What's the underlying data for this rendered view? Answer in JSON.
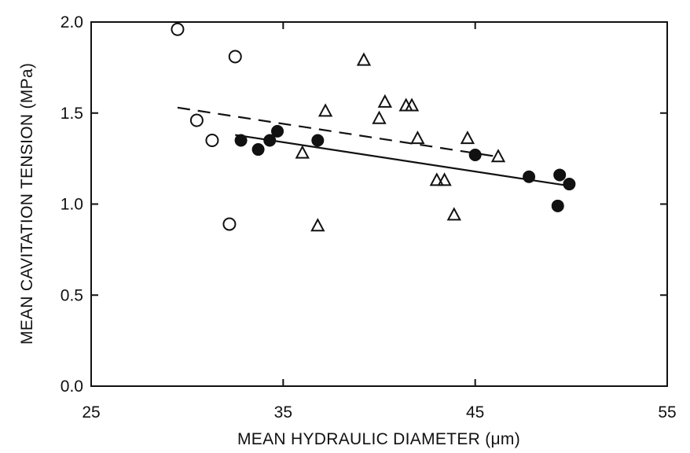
{
  "chart_data": {
    "type": "scatter",
    "title": "",
    "xlabel": "MEAN HYDRAULIC DIAMETER (μm)",
    "ylabel": "MEAN CAVITATION TENSION (MPa)",
    "xlim": [
      25,
      55
    ],
    "ylim": [
      0.0,
      2.0
    ],
    "xticks": [
      25,
      35,
      45,
      55
    ],
    "xtick_labels": [
      "25",
      "35",
      "45",
      "55"
    ],
    "yticks": [
      0.0,
      0.5,
      1.0,
      1.5,
      2.0
    ],
    "ytick_labels": [
      "0.0",
      "0.5",
      "1.0",
      "1.5",
      "2.0"
    ],
    "grid": false,
    "legend": "none",
    "series": [
      {
        "marker": "open-circle",
        "points": [
          [
            29.5,
            1.96
          ],
          [
            32.5,
            1.81
          ],
          [
            30.5,
            1.46
          ],
          [
            31.3,
            1.35
          ],
          [
            32.2,
            0.89
          ]
        ]
      },
      {
        "marker": "open-triangle",
        "points": [
          [
            39.2,
            1.79
          ],
          [
            37.2,
            1.51
          ],
          [
            40.3,
            1.56
          ],
          [
            40.0,
            1.47
          ],
          [
            41.4,
            1.54
          ],
          [
            41.7,
            1.54
          ],
          [
            42.0,
            1.36
          ],
          [
            44.6,
            1.36
          ],
          [
            36.0,
            1.28
          ],
          [
            46.2,
            1.26
          ],
          [
            43.0,
            1.13
          ],
          [
            43.4,
            1.13
          ],
          [
            43.9,
            0.94
          ],
          [
            36.8,
            0.88
          ]
        ]
      },
      {
        "marker": "filled-circle",
        "points": [
          [
            32.8,
            1.35
          ],
          [
            33.7,
            1.3
          ],
          [
            34.3,
            1.35
          ],
          [
            34.7,
            1.4
          ],
          [
            36.8,
            1.35
          ],
          [
            45.0,
            1.27
          ],
          [
            47.8,
            1.15
          ],
          [
            49.4,
            1.16
          ],
          [
            49.9,
            1.11
          ],
          [
            49.3,
            0.99
          ]
        ]
      }
    ],
    "lines": [
      {
        "style": "dashed",
        "from": [
          29.5,
          1.53
        ],
        "to": [
          46.2,
          1.26
        ]
      },
      {
        "style": "solid",
        "from": [
          32.5,
          1.38
        ],
        "to": [
          49.9,
          1.1
        ]
      }
    ]
  }
}
